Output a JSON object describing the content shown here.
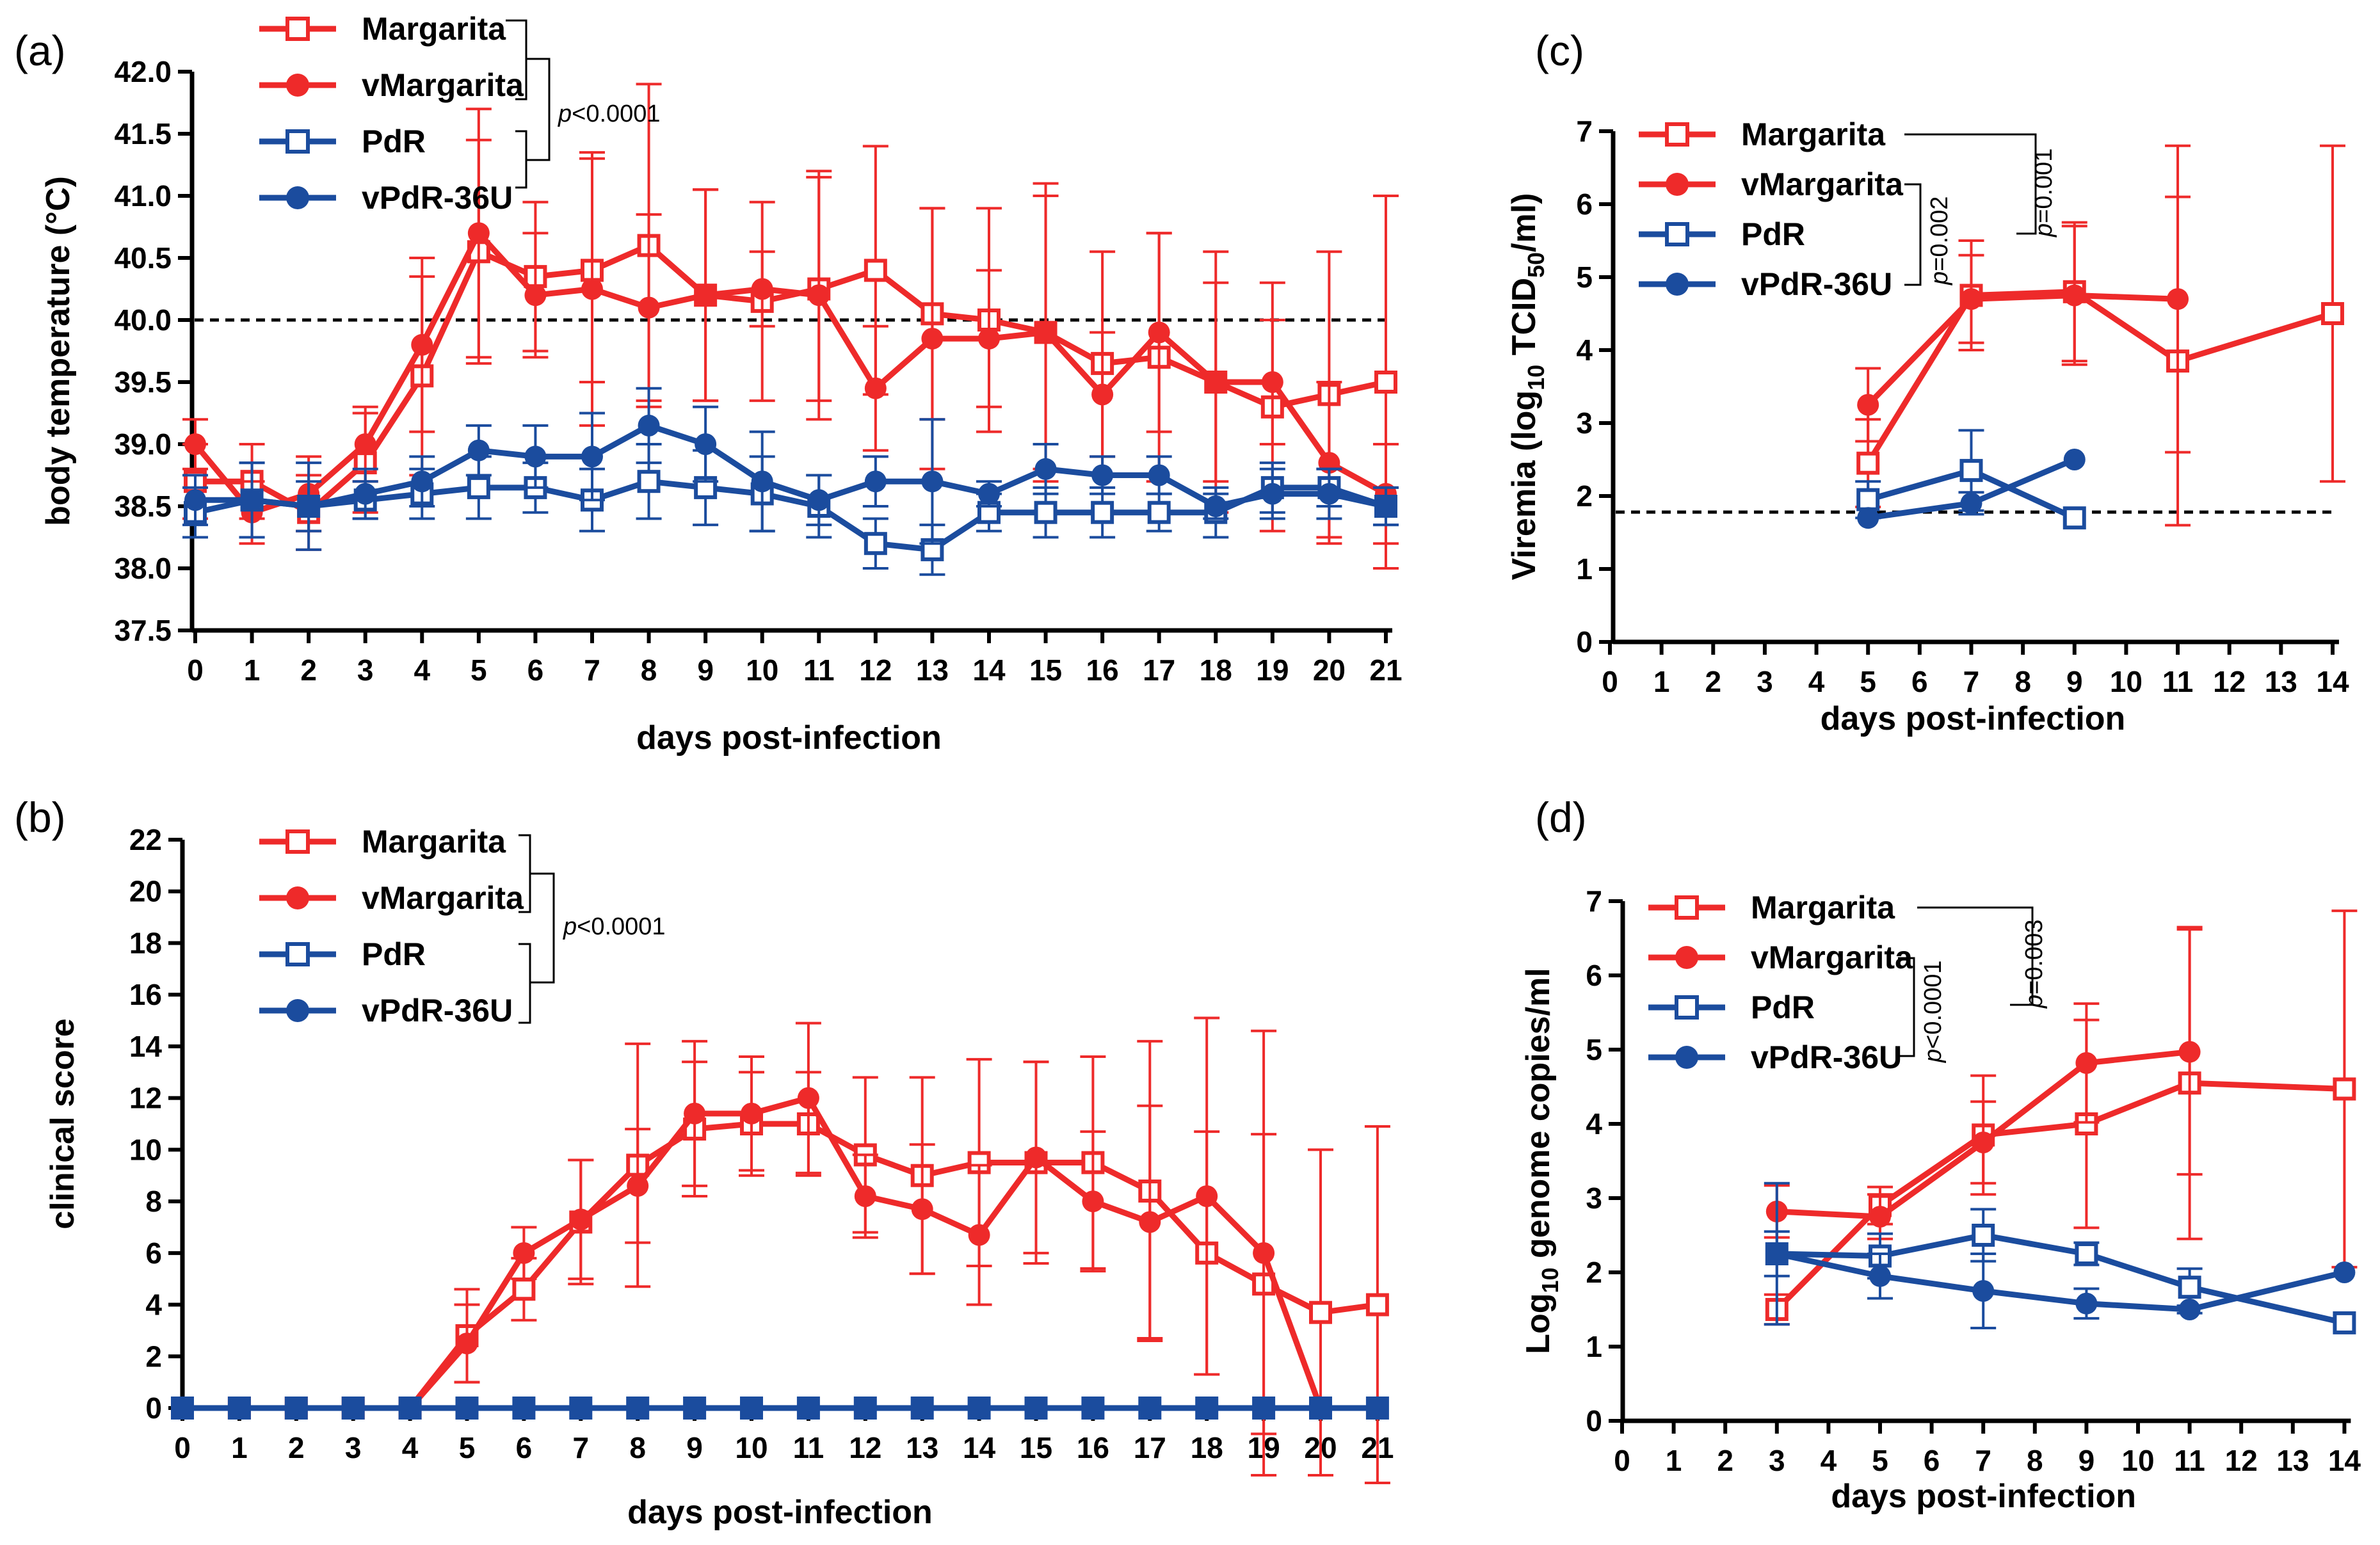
{
  "figure": {
    "description_colors": {
      "red": "#EE2A2A",
      "blue": "#1B4C9E",
      "axis": "#000000"
    }
  },
  "chart_data": [
    {
      "panel_label": "(a)",
      "type": "line",
      "xlabel": "days post-infection",
      "ylabel": "body temperature (°C)",
      "xlim": [
        0,
        21
      ],
      "ylim": [
        37.5,
        42.0
      ],
      "xticks": [
        0,
        1,
        2,
        3,
        4,
        5,
        6,
        7,
        8,
        9,
        10,
        11,
        12,
        13,
        14,
        15,
        16,
        17,
        18,
        19,
        20,
        21
      ],
      "yticks": [
        "37.5",
        "38.0",
        "38.5",
        "39.0",
        "39.5",
        "40.0",
        "40.5",
        "41.0",
        "41.5",
        "42.0"
      ],
      "threshold": 40.0,
      "pvalue": {
        "prefix": "p",
        "text": "<0.0001"
      },
      "series": [
        {
          "name": "Margarita",
          "color": "#EE2A2A",
          "marker": "open-square",
          "x": [
            0,
            1,
            2,
            3,
            4,
            5,
            6,
            7,
            8,
            9,
            10,
            11,
            12,
            13,
            14,
            15,
            16,
            17,
            18,
            19,
            20,
            21
          ],
          "y": [
            38.7,
            38.7,
            38.45,
            38.85,
            39.55,
            40.55,
            40.35,
            40.4,
            40.6,
            40.2,
            40.15,
            40.25,
            40.4,
            40.05,
            40.0,
            39.9,
            39.65,
            39.7,
            39.5,
            39.3,
            39.4,
            39.5
          ],
          "err": [
            0.3,
            0.3,
            0.3,
            0.4,
            0.8,
            0.9,
            0.6,
            0.9,
            1.3,
            0.85,
            0.8,
            0.9,
            1.0,
            0.85,
            0.9,
            1.2,
            0.9,
            1.0,
            1.05,
            1.0,
            1.15,
            1.5
          ]
        },
        {
          "name": "vMargarita",
          "color": "#EE2A2A",
          "marker": "filled-circle",
          "x": [
            0,
            1,
            2,
            3,
            4,
            5,
            6,
            7,
            8,
            9,
            10,
            11,
            12,
            13,
            14,
            15,
            16,
            17,
            18,
            19,
            20,
            21
          ],
          "y": [
            39.0,
            38.45,
            38.6,
            39.0,
            39.8,
            40.7,
            40.2,
            40.25,
            40.1,
            40.2,
            40.25,
            40.2,
            39.45,
            39.85,
            39.85,
            39.9,
            39.4,
            39.9,
            39.5,
            39.5,
            38.85,
            38.6
          ],
          "err": [
            0.2,
            0.25,
            0.3,
            0.3,
            0.7,
            1.0,
            0.5,
            1.1,
            0.75,
            0.85,
            0.3,
            1.0,
            0.5,
            1.05,
            0.55,
            1.1,
            0.5,
            0.8,
            0.8,
            0.5,
            0.65,
            0.4
          ]
        },
        {
          "name": "PdR",
          "color": "#1B4C9E",
          "marker": "open-square",
          "x": [
            0,
            1,
            2,
            3,
            4,
            5,
            6,
            7,
            8,
            9,
            10,
            11,
            12,
            13,
            14,
            15,
            16,
            17,
            18,
            19,
            20,
            21
          ],
          "y": [
            38.45,
            38.55,
            38.5,
            38.55,
            38.6,
            38.65,
            38.65,
            38.55,
            38.7,
            38.65,
            38.6,
            38.5,
            38.2,
            38.15,
            38.45,
            38.45,
            38.45,
            38.45,
            38.45,
            38.65,
            38.65,
            38.5
          ],
          "err": [
            0.2,
            0.3,
            0.2,
            0.15,
            0.2,
            0.25,
            0.2,
            0.25,
            0.3,
            0.3,
            0.3,
            0.25,
            0.2,
            0.2,
            0.15,
            0.2,
            0.2,
            0.15,
            0.2,
            0.2,
            0.15,
            0.15
          ]
        },
        {
          "name": "vPdR-36U",
          "color": "#1B4C9E",
          "marker": "filled-circle",
          "x": [
            0,
            1,
            2,
            3,
            4,
            5,
            6,
            7,
            8,
            9,
            10,
            11,
            12,
            13,
            14,
            15,
            16,
            17,
            18,
            19,
            20,
            21
          ],
          "y": [
            38.55,
            38.55,
            38.5,
            38.6,
            38.7,
            38.95,
            38.9,
            38.9,
            39.15,
            39.0,
            38.7,
            38.55,
            38.7,
            38.7,
            38.6,
            38.8,
            38.75,
            38.75,
            38.5,
            38.6,
            38.6,
            38.5
          ],
          "err": [
            0.2,
            0.3,
            0.35,
            0.2,
            0.2,
            0.2,
            0.25,
            0.35,
            0.3,
            0.3,
            0.4,
            0.2,
            0.2,
            0.5,
            0.1,
            0.2,
            0.15,
            0.15,
            0.1,
            0.2,
            0.2,
            0.15
          ]
        }
      ]
    },
    {
      "panel_label": "(b)",
      "type": "line",
      "xlabel": "days post-infection",
      "ylabel": "clinical score",
      "xlim": [
        0,
        21
      ],
      "ylim": [
        0,
        22
      ],
      "xticks": [
        0,
        1,
        2,
        3,
        4,
        5,
        6,
        7,
        8,
        9,
        10,
        11,
        12,
        13,
        14,
        15,
        16,
        17,
        18,
        19,
        20,
        21
      ],
      "yticks": [
        "0",
        "2",
        "4",
        "6",
        "8",
        "10",
        "12",
        "14",
        "16",
        "18",
        "20",
        "22"
      ],
      "pvalue": {
        "prefix": "p",
        "text": "<0.0001"
      },
      "series": [
        {
          "name": "Margarita",
          "color": "#EE2A2A",
          "marker": "open-square",
          "x": [
            0,
            1,
            2,
            3,
            4,
            5,
            6,
            7,
            8,
            9,
            10,
            11,
            12,
            13,
            14,
            15,
            16,
            17,
            18,
            19,
            20,
            21
          ],
          "y": [
            0,
            0,
            0,
            0,
            0,
            2.8,
            4.6,
            7.2,
            9.4,
            10.8,
            11.0,
            11.0,
            9.8,
            9.0,
            9.5,
            9.5,
            9.5,
            8.4,
            6.0,
            4.8,
            3.7,
            4.0
          ],
          "err": [
            0,
            0,
            0,
            0,
            0,
            1.8,
            1.2,
            2.4,
            4.7,
            2.6,
            2.0,
            2.0,
            3.0,
            3.8,
            4.0,
            3.9,
            4.1,
            5.8,
            4.7,
            5.8,
            6.3,
            6.9
          ]
        },
        {
          "name": "vMargarita",
          "color": "#EE2A2A",
          "marker": "filled-circle",
          "x": [
            0,
            1,
            2,
            3,
            4,
            5,
            6,
            7,
            8,
            9,
            10,
            11,
            12,
            13,
            14,
            15,
            16,
            17,
            18,
            19,
            20,
            21
          ],
          "y": [
            0,
            0,
            0,
            0,
            0,
            2.5,
            6.0,
            7.3,
            8.6,
            11.4,
            11.4,
            12.0,
            8.2,
            7.7,
            6.7,
            9.7,
            8.0,
            7.2,
            8.2,
            6.0,
            0,
            0
          ],
          "err": [
            0,
            0,
            0,
            0,
            0,
            1.5,
            1.0,
            2.3,
            2.2,
            2.8,
            2.2,
            2.9,
            1.6,
            2.5,
            2.7,
            3.7,
            2.7,
            4.5,
            6.9,
            8.6,
            0,
            0
          ]
        },
        {
          "name": "PdR",
          "color": "#1B4C9E",
          "marker": "open-square",
          "x": [
            0,
            1,
            2,
            3,
            4,
            5,
            6,
            7,
            8,
            9,
            10,
            11,
            12,
            13,
            14,
            15,
            16,
            17,
            18,
            19,
            20,
            21
          ],
          "y": [
            0,
            0,
            0,
            0,
            0,
            0,
            0,
            0,
            0,
            0,
            0,
            0,
            0,
            0,
            0,
            0,
            0,
            0,
            0,
            0,
            0,
            0
          ],
          "err": [
            0,
            0,
            0,
            0,
            0,
            0,
            0,
            0,
            0,
            0,
            0,
            0,
            0,
            0,
            0,
            0,
            0,
            0,
            0,
            0,
            0,
            0
          ]
        },
        {
          "name": "vPdR-36U",
          "color": "#1B4C9E",
          "marker": "filled-circle",
          "x": [
            0,
            1,
            2,
            3,
            4,
            5,
            6,
            7,
            8,
            9,
            10,
            11,
            12,
            13,
            14,
            15,
            16,
            17,
            18,
            19,
            20,
            21
          ],
          "y": [
            0,
            0,
            0,
            0,
            0,
            0,
            0,
            0,
            0,
            0,
            0,
            0,
            0,
            0,
            0,
            0,
            0,
            0,
            0,
            0,
            0,
            0
          ],
          "err": [
            0,
            0,
            0,
            0,
            0,
            0,
            0,
            0,
            0,
            0,
            0,
            0,
            0,
            0,
            0,
            0,
            0,
            0,
            0,
            0,
            0,
            0
          ]
        }
      ]
    },
    {
      "panel_label": "(c)",
      "type": "line",
      "xlabel": "days post-infection",
      "ylabel_parts": {
        "pre": "Viremia (log",
        "sub1": "10",
        "mid": " TCID",
        "sub2": "50",
        "post": "/ml)"
      },
      "xlim": [
        0,
        14
      ],
      "ylim": [
        0,
        7
      ],
      "xticks": [
        0,
        1,
        2,
        3,
        4,
        5,
        6,
        7,
        8,
        9,
        10,
        11,
        12,
        13,
        14
      ],
      "yticks": [
        "0",
        "1",
        "2",
        "3",
        "4",
        "5",
        "6",
        "7"
      ],
      "threshold": 1.78,
      "pvalues": [
        {
          "prefix": "p",
          "text": "=0.002"
        },
        {
          "prefix": "p",
          "text": "=0.001"
        }
      ],
      "series": [
        {
          "name": "Margarita",
          "color": "#EE2A2A",
          "marker": "open-square",
          "x": [
            5,
            7,
            9,
            11,
            14
          ],
          "y": [
            2.45,
            4.75,
            4.8,
            3.85,
            4.5
          ],
          "err": [
            0.6,
            0.75,
            0.95,
            2.25,
            2.3
          ]
        },
        {
          "name": "vMargarita",
          "color": "#EE2A2A",
          "marker": "filled-circle",
          "x": [
            5,
            7,
            9,
            11
          ],
          "y": [
            3.25,
            4.7,
            4.75,
            4.7
          ],
          "err": [
            0.5,
            0.6,
            0.95,
            2.1
          ]
        },
        {
          "name": "PdR",
          "color": "#1B4C9E",
          "marker": "open-square",
          "x": [
            5,
            7,
            9
          ],
          "y": [
            1.95,
            2.35,
            1.7
          ],
          "err": [
            0.25,
            0.55,
            0
          ]
        },
        {
          "name": "vPdR-36U",
          "color": "#1B4C9E",
          "marker": "filled-circle",
          "x": [
            5,
            7,
            9
          ],
          "y": [
            1.7,
            1.9,
            2.5
          ],
          "err": [
            0,
            0.15,
            0
          ]
        }
      ]
    },
    {
      "panel_label": "(d)",
      "type": "line",
      "xlabel": "days post-infection",
      "ylabel_parts": {
        "pre": "Log",
        "sub1": "10",
        "post": " genome copies/ml"
      },
      "xlim": [
        0,
        14
      ],
      "ylim": [
        0,
        7
      ],
      "xticks": [
        0,
        1,
        2,
        3,
        4,
        5,
        6,
        7,
        8,
        9,
        10,
        11,
        12,
        13,
        14
      ],
      "yticks": [
        "0",
        "1",
        "2",
        "3",
        "4",
        "5",
        "6",
        "7"
      ],
      "pvalues": [
        {
          "prefix": "p",
          "text": "<0.0001"
        },
        {
          "prefix": "p",
          "text": "=0.003"
        }
      ],
      "series": [
        {
          "name": "Margarita",
          "color": "#EE2A2A",
          "marker": "open-square",
          "x": [
            3,
            5,
            7,
            9,
            11,
            14
          ],
          "y": [
            1.5,
            2.9,
            3.85,
            4.0,
            4.55,
            4.47
          ],
          "err": [
            0.2,
            0.25,
            0.8,
            1.4,
            2.1,
            2.4
          ]
        },
        {
          "name": "vMargarita",
          "color": "#EE2A2A",
          "marker": "filled-circle",
          "x": [
            3,
            5,
            7,
            9,
            11
          ],
          "y": [
            2.82,
            2.75,
            3.75,
            4.82,
            4.97
          ],
          "err": [
            0.35,
            0.3,
            0.55,
            0.8,
            1.65
          ]
        },
        {
          "name": "PdR",
          "color": "#1B4C9E",
          "marker": "open-square",
          "x": [
            3,
            5,
            7,
            9,
            11,
            14
          ],
          "y": [
            2.25,
            2.22,
            2.5,
            2.25,
            1.8,
            1.32
          ],
          "err": [
            0.95,
            0.3,
            0.35,
            0.15,
            0.25,
            0
          ]
        },
        {
          "name": "vPdR-36U",
          "color": "#1B4C9E",
          "marker": "filled-circle",
          "x": [
            3,
            5,
            7,
            9,
            11,
            14
          ],
          "y": [
            2.25,
            1.95,
            1.75,
            1.58,
            1.5,
            2.0
          ],
          "err": [
            0.3,
            0.3,
            0.5,
            0.2,
            0.05,
            0
          ]
        }
      ]
    }
  ]
}
